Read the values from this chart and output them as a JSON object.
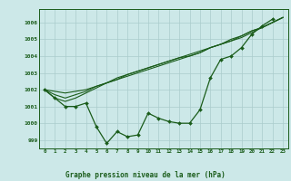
{
  "title": "Graphe pression niveau de la mer (hPa)",
  "background_color": "#cce8e8",
  "grid_color": "#aacccc",
  "line_color": "#1a5c1a",
  "marker_color": "#1a5c1a",
  "xlim": [
    -0.5,
    23.5
  ],
  "ylim": [
    998.5,
    1006.8
  ],
  "yticks": [
    999,
    1000,
    1001,
    1002,
    1003,
    1004,
    1005,
    1006
  ],
  "xticks": [
    0,
    1,
    2,
    3,
    4,
    5,
    6,
    7,
    8,
    9,
    10,
    11,
    12,
    13,
    14,
    15,
    16,
    17,
    18,
    19,
    20,
    21,
    22,
    23
  ],
  "series1": [
    1002.0,
    1001.5,
    1001.0,
    1001.0,
    1001.2,
    999.8,
    998.8,
    999.5,
    999.2,
    999.3,
    1000.6,
    1000.3,
    1000.1,
    1000.0,
    1000.0,
    1000.8,
    1002.7,
    1003.8,
    1004.0,
    1004.5,
    1005.3,
    1005.8,
    1006.2
  ],
  "series2": [
    1002.0,
    1001.5,
    1001.3,
    1001.5,
    1001.8,
    1002.1,
    1002.4,
    1002.6,
    1002.9,
    1003.1,
    1003.3,
    1003.5,
    1003.7,
    1003.9,
    1004.1,
    1004.3,
    1004.5,
    1004.7,
    1004.9,
    1005.1,
    1005.4,
    1005.7,
    1006.0,
    1006.3
  ],
  "series3": [
    1002.0,
    1001.7,
    1001.5,
    1001.7,
    1001.9,
    1002.2,
    1002.4,
    1002.7,
    1002.9,
    1003.1,
    1003.3,
    1003.5,
    1003.7,
    1003.9,
    1004.0,
    1004.2,
    1004.5,
    1004.7,
    1005.0,
    1005.2,
    1005.5,
    1005.7,
    1006.0,
    1006.3
  ],
  "series4": [
    1002.0,
    1001.9,
    1001.8,
    1001.9,
    1002.0,
    1002.2,
    1002.4,
    1002.6,
    1002.8,
    1003.0,
    1003.2,
    1003.4,
    1003.6,
    1003.8,
    1004.0,
    1004.2,
    1004.5,
    1004.7,
    1004.9,
    1005.2,
    1005.5,
    1005.7,
    1006.0,
    1006.3
  ]
}
